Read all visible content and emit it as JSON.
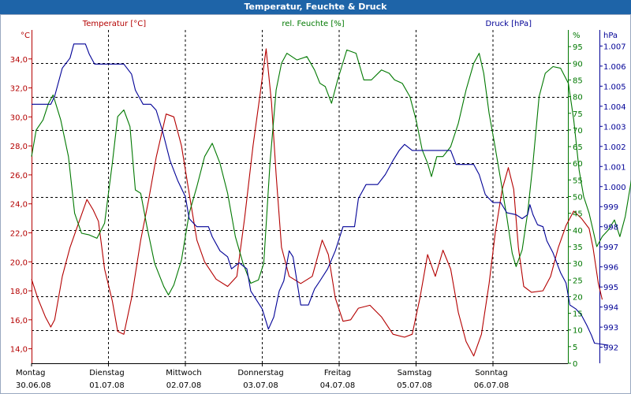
{
  "window": {
    "title": "Temperatur, Feuchte & Druck"
  },
  "chart_data": {
    "type": "line",
    "title": "Temperatur, Feuchte & Druck",
    "grid": true,
    "x_categories": [
      {
        "day": "Montag",
        "date": "30.06.08"
      },
      {
        "day": "Dienstag",
        "date": "01.07.08"
      },
      {
        "day": "Mittwoch",
        "date": "02.07.08"
      },
      {
        "day": "Donnerstag",
        "date": "03.07.08"
      },
      {
        "day": "Freitag",
        "date": "04.07.08"
      },
      {
        "day": "Samstag",
        "date": "05.07.08"
      },
      {
        "day": "Sonntag",
        "date": "06.07.08"
      }
    ],
    "x_range_days": [
      0,
      7
    ],
    "axes": {
      "temperature": {
        "label": "Temperatur [°C]",
        "unit": "°C",
        "color": "#b40000",
        "range": [
          13,
          36
        ],
        "ticks": [
          "34,0",
          "32,0",
          "30,0",
          "28,0",
          "26,0",
          "24,0",
          "22,0",
          "20,0",
          "18,0",
          "16,0",
          "14,0"
        ],
        "tick_values": [
          34,
          32,
          30,
          28,
          26,
          24,
          22,
          20,
          18,
          16,
          14
        ]
      },
      "humidity": {
        "label": "rel. Feuchte [%]",
        "unit": "%",
        "color": "#007800",
        "range": [
          0,
          100
        ],
        "ticks": [
          "0",
          "5",
          "10",
          "15",
          "20",
          "25",
          "30",
          "35",
          "40",
          "45",
          "50",
          "55",
          "60",
          "65",
          "70",
          "75",
          "80",
          "85",
          "90",
          "95"
        ],
        "tick_values": [
          0,
          5,
          10,
          15,
          20,
          25,
          30,
          35,
          40,
          45,
          50,
          55,
          60,
          65,
          70,
          75,
          80,
          85,
          90,
          95
        ]
      },
      "pressure": {
        "label": "Druck [hPa]",
        "unit": "hPa",
        "color": "#000096",
        "range": [
          991.2,
          1007.8
        ],
        "ticks": [
          "1.007",
          "1.006",
          "1.005",
          "1.004",
          "1.003",
          "1.002",
          "1.001",
          "1.000",
          "999",
          "998",
          "997",
          "996",
          "995",
          "994",
          "993",
          "992"
        ],
        "tick_values": [
          1007,
          1006,
          1005,
          1004,
          1003,
          1002,
          1001,
          1000,
          999,
          998,
          997,
          996,
          995,
          994,
          993,
          992
        ]
      }
    },
    "series": [
      {
        "name": "Temperatur",
        "axis": "temperature",
        "color": "#b40000",
        "points": [
          [
            0,
            18.8
          ],
          [
            0.08,
            17.5
          ],
          [
            0.18,
            16.2
          ],
          [
            0.25,
            15.5
          ],
          [
            0.3,
            16
          ],
          [
            0.4,
            19
          ],
          [
            0.5,
            21
          ],
          [
            0.6,
            22.5
          ],
          [
            0.72,
            24.3
          ],
          [
            0.8,
            23.6
          ],
          [
            0.87,
            22.8
          ],
          [
            0.95,
            19.5
          ],
          [
            1.05,
            17.3
          ],
          [
            1.12,
            15.2
          ],
          [
            1.2,
            15
          ],
          [
            1.3,
            17.5
          ],
          [
            1.42,
            21.5
          ],
          [
            1.52,
            24.2
          ],
          [
            1.62,
            27.2
          ],
          [
            1.75,
            30.2
          ],
          [
            1.85,
            30
          ],
          [
            1.95,
            28
          ],
          [
            2.05,
            24.7
          ],
          [
            2.15,
            21.5
          ],
          [
            2.25,
            20
          ],
          [
            2.4,
            18.8
          ],
          [
            2.55,
            18.3
          ],
          [
            2.67,
            19
          ],
          [
            2.77,
            23
          ],
          [
            2.88,
            28
          ],
          [
            2.97,
            31.5
          ],
          [
            3.05,
            34.7
          ],
          [
            3.12,
            31
          ],
          [
            3.18,
            26
          ],
          [
            3.25,
            21
          ],
          [
            3.35,
            19
          ],
          [
            3.5,
            18.5
          ],
          [
            3.65,
            19
          ],
          [
            3.78,
            21.5
          ],
          [
            3.86,
            20.5
          ],
          [
            3.95,
            17.5
          ],
          [
            4.05,
            15.9
          ],
          [
            4.15,
            16
          ],
          [
            4.25,
            16.8
          ],
          [
            4.4,
            17
          ],
          [
            4.55,
            16.2
          ],
          [
            4.7,
            15
          ],
          [
            4.85,
            14.8
          ],
          [
            4.95,
            15
          ],
          [
            5.05,
            17.5
          ],
          [
            5.15,
            20.5
          ],
          [
            5.25,
            19
          ],
          [
            5.35,
            20.8
          ],
          [
            5.45,
            19.5
          ],
          [
            5.55,
            16.5
          ],
          [
            5.65,
            14.5
          ],
          [
            5.75,
            13.5
          ],
          [
            5.85,
            15
          ],
          [
            5.95,
            18.5
          ],
          [
            6.03,
            22
          ],
          [
            6.12,
            25
          ],
          [
            6.2,
            26.5
          ],
          [
            6.27,
            25
          ],
          [
            6.33,
            21
          ],
          [
            6.4,
            18.3
          ],
          [
            6.5,
            17.9
          ],
          [
            6.65,
            18
          ],
          [
            6.75,
            19
          ],
          [
            6.85,
            21
          ],
          [
            6.95,
            22.5
          ],
          [
            7.05,
            23.5
          ],
          [
            7.15,
            23
          ],
          [
            7.25,
            22.3
          ],
          [
            7.3,
            21
          ],
          [
            7.37,
            18.5
          ],
          [
            7.42,
            17.4
          ]
        ]
      },
      {
        "name": "rel. Feuchte",
        "axis": "humidity",
        "color": "#007800",
        "points": [
          [
            0,
            62
          ],
          [
            0.06,
            70
          ],
          [
            0.15,
            73
          ],
          [
            0.22,
            78
          ],
          [
            0.28,
            80.5
          ],
          [
            0.38,
            73
          ],
          [
            0.48,
            62
          ],
          [
            0.56,
            45
          ],
          [
            0.65,
            39
          ],
          [
            0.75,
            38.5
          ],
          [
            0.85,
            37.5
          ],
          [
            0.95,
            42
          ],
          [
            1.05,
            60
          ],
          [
            1.12,
            74
          ],
          [
            1.2,
            76
          ],
          [
            1.28,
            71
          ],
          [
            1.35,
            52
          ],
          [
            1.42,
            51
          ],
          [
            1.5,
            41
          ],
          [
            1.6,
            30
          ],
          [
            1.72,
            23
          ],
          [
            1.78,
            20.5
          ],
          [
            1.85,
            23.5
          ],
          [
            1.95,
            31
          ],
          [
            2.05,
            45
          ],
          [
            2.15,
            53
          ],
          [
            2.25,
            62
          ],
          [
            2.35,
            66
          ],
          [
            2.45,
            60
          ],
          [
            2.55,
            51
          ],
          [
            2.65,
            38
          ],
          [
            2.75,
            30
          ],
          [
            2.85,
            24
          ],
          [
            2.95,
            25
          ],
          [
            3.02,
            30
          ],
          [
            3.1,
            60
          ],
          [
            3.18,
            82
          ],
          [
            3.25,
            90
          ],
          [
            3.32,
            93
          ],
          [
            3.45,
            91
          ],
          [
            3.58,
            92
          ],
          [
            3.68,
            88
          ],
          [
            3.75,
            84
          ],
          [
            3.82,
            83
          ],
          [
            3.9,
            78
          ],
          [
            3.98,
            85
          ],
          [
            4.1,
            94
          ],
          [
            4.22,
            93
          ],
          [
            4.32,
            85
          ],
          [
            4.42,
            85
          ],
          [
            4.55,
            88
          ],
          [
            4.65,
            87
          ],
          [
            4.72,
            85
          ],
          [
            4.82,
            84
          ],
          [
            4.92,
            80
          ],
          [
            5.0,
            73
          ],
          [
            5.08,
            64
          ],
          [
            5.15,
            60
          ],
          [
            5.2,
            56
          ],
          [
            5.27,
            62
          ],
          [
            5.35,
            62
          ],
          [
            5.45,
            65
          ],
          [
            5.55,
            72
          ],
          [
            5.65,
            82
          ],
          [
            5.75,
            90
          ],
          [
            5.82,
            93
          ],
          [
            5.88,
            87
          ],
          [
            5.95,
            75
          ],
          [
            6.02,
            66
          ],
          [
            6.1,
            55
          ],
          [
            6.18,
            44
          ],
          [
            6.25,
            33
          ],
          [
            6.3,
            29
          ],
          [
            6.38,
            34
          ],
          [
            6.45,
            45
          ],
          [
            6.52,
            60
          ],
          [
            6.6,
            80
          ],
          [
            6.68,
            87
          ],
          [
            6.78,
            89
          ],
          [
            6.88,
            88.5
          ],
          [
            6.98,
            84
          ],
          [
            7.05,
            73
          ],
          [
            7.12,
            58
          ],
          [
            7.18,
            50
          ],
          [
            7.25,
            45
          ],
          [
            7.3,
            40
          ],
          [
            7.35,
            35
          ],
          [
            7.42,
            38
          ],
          [
            7.5,
            40
          ],
          [
            7.58,
            43
          ],
          [
            7.65,
            38
          ],
          [
            7.72,
            44
          ],
          [
            7.8,
            55
          ],
          [
            7.86,
            60
          ]
        ]
      },
      {
        "name": "Druck",
        "axis": "pressure",
        "color": "#000096",
        "points": [
          [
            0,
            1004.1
          ],
          [
            0.25,
            1004.1
          ],
          [
            0.3,
            1004.5
          ],
          [
            0.4,
            1005.9
          ],
          [
            0.5,
            1006.4
          ],
          [
            0.55,
            1007.1
          ],
          [
            0.7,
            1007.1
          ],
          [
            0.75,
            1006.6
          ],
          [
            0.82,
            1006.1
          ],
          [
            1.0,
            1006.1
          ],
          [
            1.2,
            1006.1
          ],
          [
            1.3,
            1005.6
          ],
          [
            1.35,
            1004.8
          ],
          [
            1.45,
            1004.1
          ],
          [
            1.55,
            1004.1
          ],
          [
            1.62,
            1003.8
          ],
          [
            1.7,
            1002.8
          ],
          [
            1.8,
            1001.3
          ],
          [
            1.9,
            1000.3
          ],
          [
            2.0,
            999.5
          ],
          [
            2.05,
            998.4
          ],
          [
            2.15,
            998
          ],
          [
            2.3,
            998
          ],
          [
            2.35,
            997.5
          ],
          [
            2.45,
            996.8
          ],
          [
            2.55,
            996.5
          ],
          [
            2.6,
            995.9
          ],
          [
            2.7,
            996.2
          ],
          [
            2.8,
            995.9
          ],
          [
            2.85,
            994.8
          ],
          [
            3.0,
            993.9
          ],
          [
            3.08,
            992.9
          ],
          [
            3.15,
            993.5
          ],
          [
            3.22,
            994.8
          ],
          [
            3.28,
            995.3
          ],
          [
            3.35,
            996.8
          ],
          [
            3.4,
            996.5
          ],
          [
            3.45,
            995.3
          ],
          [
            3.5,
            994.1
          ],
          [
            3.6,
            994.1
          ],
          [
            3.68,
            994.9
          ],
          [
            3.75,
            995.3
          ],
          [
            3.85,
            995.9
          ],
          [
            3.95,
            996.8
          ],
          [
            4.05,
            998
          ],
          [
            4.2,
            998
          ],
          [
            4.25,
            999.4
          ],
          [
            4.35,
            1000.1
          ],
          [
            4.5,
            1000.1
          ],
          [
            4.6,
            1000.6
          ],
          [
            4.7,
            1001.3
          ],
          [
            4.78,
            1001.8
          ],
          [
            4.85,
            1002.1
          ],
          [
            4.95,
            1001.8
          ],
          [
            5.2,
            1001.8
          ],
          [
            5.45,
            1001.8
          ],
          [
            5.52,
            1001.1
          ],
          [
            5.62,
            1001.1
          ],
          [
            5.75,
            1001.1
          ],
          [
            5.82,
            1000.6
          ],
          [
            5.9,
            999.6
          ],
          [
            6.0,
            999.2
          ],
          [
            6.1,
            999.2
          ],
          [
            6.18,
            998.7
          ],
          [
            6.3,
            998.6
          ],
          [
            6.38,
            998.4
          ],
          [
            6.45,
            998.6
          ],
          [
            6.48,
            999.1
          ],
          [
            6.52,
            998.6
          ],
          [
            6.58,
            998.1
          ],
          [
            6.65,
            998
          ],
          [
            6.7,
            997.3
          ],
          [
            6.78,
            996.7
          ],
          [
            6.88,
            995.7
          ],
          [
            6.95,
            995.2
          ],
          [
            7.0,
            994.1
          ],
          [
            7.08,
            993.9
          ],
          [
            7.15,
            993.6
          ],
          [
            7.22,
            993.1
          ],
          [
            7.28,
            992.6
          ],
          [
            7.32,
            992.2
          ],
          [
            7.5,
            992.1
          ]
        ]
      }
    ]
  }
}
